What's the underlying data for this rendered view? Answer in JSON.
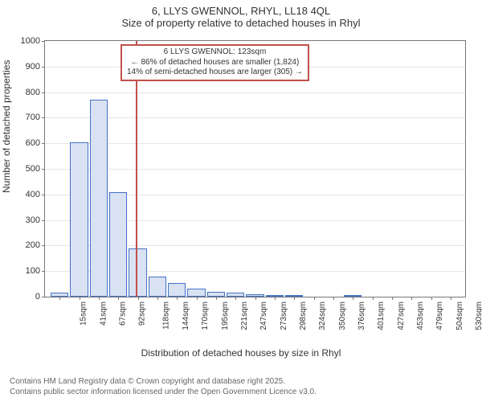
{
  "title": {
    "line1": "6, LLYS GWENNOL, RHYL, LL18 4QL",
    "line2": "Size of property relative to detached houses in Rhyl",
    "fontsize": 13,
    "color": "#333333"
  },
  "chart": {
    "type": "histogram",
    "ylabel": "Number of detached properties",
    "xlabel": "Distribution of detached houses by size in Rhyl",
    "label_fontsize": 12,
    "ylim": [
      0,
      1000
    ],
    "ytick_step": 100,
    "background_color": "#ffffff",
    "grid_color": "#e6e6e6",
    "border_color": "#777777",
    "bar_fill": "#d9e2f3",
    "bar_stroke": "#4472c4",
    "marker_color": "#c0504d",
    "marker_value": 123,
    "x_ticks": [
      "15sqm",
      "41sqm",
      "67sqm",
      "92sqm",
      "118sqm",
      "144sqm",
      "170sqm",
      "195sqm",
      "221sqm",
      "247sqm",
      "273sqm",
      "298sqm",
      "324sqm",
      "350sqm",
      "376sqm",
      "401sqm",
      "427sqm",
      "453sqm",
      "479sqm",
      "504sqm",
      "530sqm"
    ],
    "values": [
      15,
      605,
      770,
      410,
      190,
      80,
      55,
      30,
      20,
      15,
      10,
      5,
      5,
      0,
      0,
      5,
      0,
      0,
      0,
      0,
      0
    ],
    "annotation": {
      "line1": "6 LLYS GWENNOL: 123sqm",
      "line2": "← 86% of detached houses are smaller (1,824)",
      "line3": "14% of semi-detached houses are larger (305) →",
      "border_color": "#c0504d",
      "fontsize": 10
    }
  },
  "footer": {
    "line1": "Contains HM Land Registry data © Crown copyright and database right 2025.",
    "line2": "Contains public sector information licensed under the Open Government Licence v3.0.",
    "color": "#666666",
    "fontsize": 10
  }
}
